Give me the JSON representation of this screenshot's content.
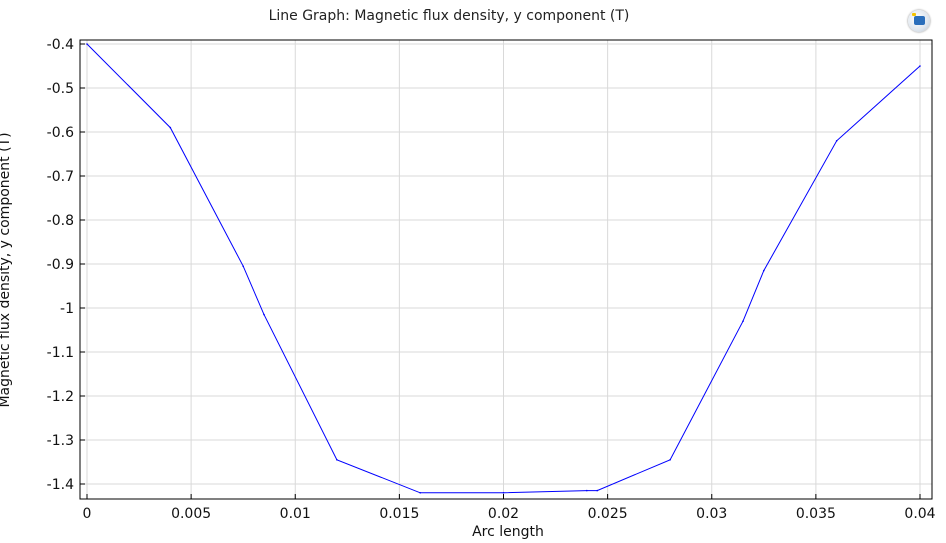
{
  "chart_data": {
    "type": "line",
    "title": "Line Graph: Magnetic flux density, y component (T)",
    "xlabel": "Arc length",
    "ylabel": "Magnetic flux density, y component (T)",
    "xlim": [
      0,
      0.04
    ],
    "ylim": [
      -1.42,
      -0.4
    ],
    "xticks": [
      "0",
      "0.005",
      "0.01",
      "0.015",
      "0.02",
      "0.025",
      "0.03",
      "0.035",
      "0.04"
    ],
    "yticks": [
      "-0.4",
      "-0.5",
      "-0.6",
      "-0.7",
      "-0.8",
      "-0.9",
      "-1",
      "-1.1",
      "-1.2",
      "-1.3",
      "-1.4"
    ],
    "grid": true,
    "color": "#0000ff",
    "series": [
      {
        "x": [
          0,
          0.004,
          0.0075,
          0.0085,
          0.012,
          0.016,
          0.02,
          0.024,
          0.0245,
          0.028,
          0.0315,
          0.0325,
          0.036,
          0.04
        ],
        "y": [
          -0.4,
          -0.59,
          -0.905,
          -1.015,
          -1.345,
          -1.42,
          -1.42,
          -1.415,
          -1.415,
          -1.345,
          -1.03,
          -0.915,
          -0.62,
          -0.45
        ]
      }
    ]
  },
  "logo": {
    "icon": "comsol-graphics-icon"
  }
}
